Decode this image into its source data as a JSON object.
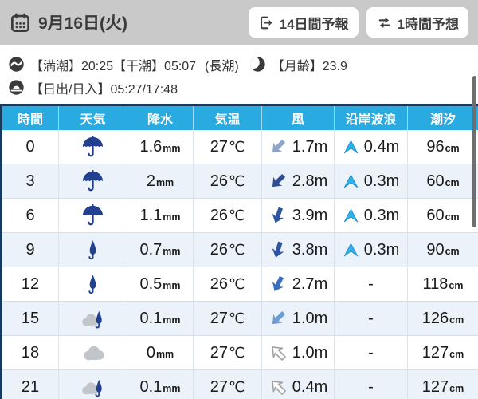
{
  "topbar": {
    "date": "9月16日(火)",
    "buttons": [
      {
        "icon": "export-icon",
        "label": "14日間予報"
      },
      {
        "icon": "swap-icon",
        "label": "1時間予想"
      }
    ]
  },
  "info": {
    "tide_text": "【満潮】20:25【干潮】05:07",
    "tide_type": "(長潮)",
    "moon_text": "【月齢】23.9",
    "sun_text": "【日出/日入】05:27/17:48"
  },
  "table": {
    "headers": [
      "時間",
      "天気",
      "降水",
      "気温",
      "風",
      "沿岸波浪",
      "潮汐"
    ],
    "rows": [
      {
        "time": "0",
        "weather": "umbrella",
        "precip": "1.6",
        "precip_unit": "mm",
        "temp": "27",
        "temp_unit": "℃",
        "wind": {
          "value": "1.7m",
          "dir": 225,
          "color": "#8ba6c9",
          "outline": false
        },
        "wave": {
          "arrow": true,
          "value": "0.4m"
        },
        "tide": "96",
        "tide_unit": "cm"
      },
      {
        "time": "3",
        "weather": "umbrella",
        "precip": "2",
        "precip_unit": "mm",
        "temp": "26",
        "temp_unit": "℃",
        "wind": {
          "value": "2.8m",
          "dir": 225,
          "color": "#2d4d94",
          "outline": false
        },
        "wave": {
          "arrow": true,
          "value": "0.3m"
        },
        "tide": "60",
        "tide_unit": "cm"
      },
      {
        "time": "6",
        "weather": "umbrella",
        "precip": "1.1",
        "precip_unit": "mm",
        "temp": "26",
        "temp_unit": "℃",
        "wind": {
          "value": "3.9m",
          "dir": 200,
          "color": "#2d54a3",
          "outline": false
        },
        "wave": {
          "arrow": true,
          "value": "0.3m"
        },
        "tide": "60",
        "tide_unit": "cm"
      },
      {
        "time": "9",
        "weather": "umbrella-closed",
        "precip": "0.7",
        "precip_unit": "mm",
        "temp": "26",
        "temp_unit": "℃",
        "wind": {
          "value": "3.8m",
          "dir": 197,
          "color": "#2d54a3",
          "outline": false
        },
        "wave": {
          "arrow": true,
          "value": "0.3m"
        },
        "tide": "90",
        "tide_unit": "cm"
      },
      {
        "time": "12",
        "weather": "umbrella-closed",
        "precip": "0.5",
        "precip_unit": "mm",
        "temp": "26",
        "temp_unit": "℃",
        "wind": {
          "value": "2.7m",
          "dir": 207,
          "color": "#3a6fc0",
          "outline": false
        },
        "wave": {
          "arrow": false,
          "value": "-"
        },
        "tide": "118",
        "tide_unit": "cm"
      },
      {
        "time": "15",
        "weather": "cloud-umbrella",
        "precip": "0.1",
        "precip_unit": "mm",
        "temp": "27",
        "temp_unit": "℃",
        "wind": {
          "value": "1.0m",
          "dir": 225,
          "color": "#6d9bd4",
          "outline": false
        },
        "wave": {
          "arrow": false,
          "value": "-"
        },
        "tide": "126",
        "tide_unit": "cm"
      },
      {
        "time": "18",
        "weather": "cloud",
        "precip": "0",
        "precip_unit": "mm",
        "temp": "27",
        "temp_unit": "℃",
        "wind": {
          "value": "1.0m",
          "dir": 315,
          "color": "#fbfbfb",
          "outline": true
        },
        "wave": {
          "arrow": false,
          "value": "-"
        },
        "tide": "127",
        "tide_unit": "cm"
      },
      {
        "time": "21",
        "weather": "cloud-umbrella",
        "precip": "0.1",
        "precip_unit": "mm",
        "temp": "27",
        "temp_unit": "℃",
        "wind": {
          "value": "0.4m",
          "dir": 315,
          "color": "#fbfbfb",
          "outline": true
        },
        "wave": {
          "arrow": false,
          "value": "-"
        },
        "tide": "127",
        "tide_unit": "cm"
      }
    ]
  },
  "colors": {
    "header_blue": "#29aae1",
    "table_border_navy": "#16395d",
    "topbar_gray": "#c9c9c9",
    "row_alt": "#ecf2f9",
    "umbrella_blue": "#233f8f",
    "cloud_gray": "#c2c6ca",
    "wave_arrow_cyan": "#2fb2e8",
    "scrollbar_gray": "#6e6e6e"
  }
}
